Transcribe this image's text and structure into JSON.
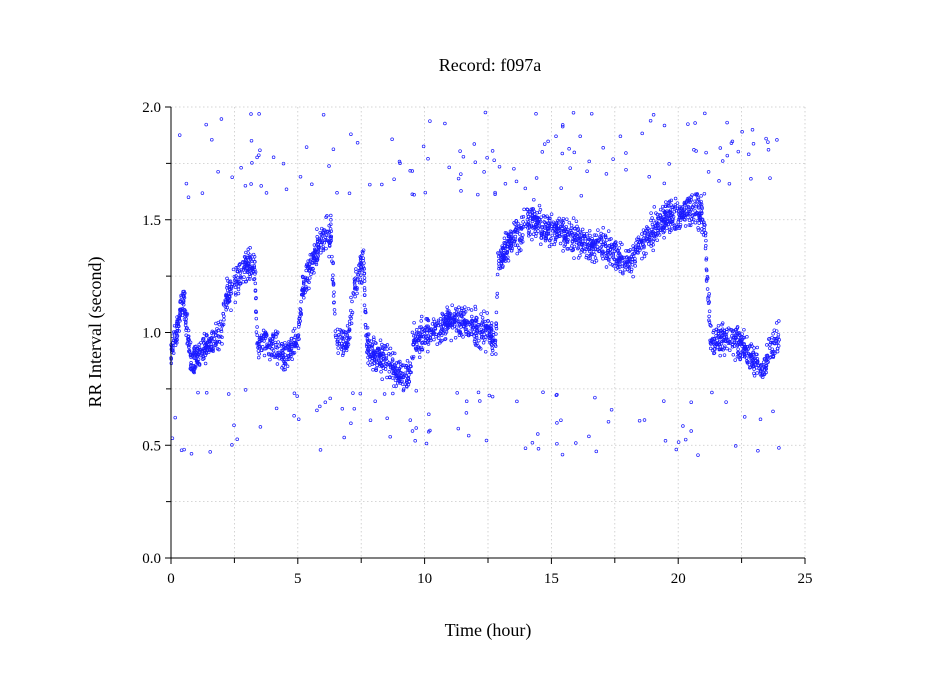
{
  "chart_data": {
    "type": "scatter",
    "title": "Record:  f097a",
    "xlabel": "Time (hour)",
    "ylabel": "RR Interval (second)",
    "xlim": [
      0,
      25
    ],
    "ylim": [
      0.0,
      2.0
    ],
    "x_ticks": [
      0,
      5,
      10,
      15,
      20,
      25
    ],
    "x_tick_labels": [
      "0",
      "5",
      "10",
      "15",
      "20",
      "25"
    ],
    "x_minor_ticks": [
      2.5,
      7.5,
      12.5,
      17.5,
      22.5
    ],
    "y_ticks": [
      0.0,
      0.5,
      1.0,
      1.5,
      2.0
    ],
    "y_tick_labels": [
      "0.0",
      "0.5",
      "1.0",
      "1.5",
      "2.0"
    ],
    "y_minor_ticks": [
      0.25,
      0.75,
      1.25,
      1.75
    ],
    "grid": true,
    "marker": "open-circle",
    "color": "#1a1aff",
    "trend": {
      "x": [
        0.0,
        0.3,
        0.5,
        0.8,
        1.0,
        1.5,
        2.0,
        2.2,
        2.5,
        3.0,
        3.3,
        3.4,
        3.6,
        4.0,
        4.5,
        5.0,
        5.2,
        5.5,
        6.0,
        6.3,
        6.5,
        7.0,
        7.2,
        7.5,
        7.6,
        7.7,
        8.0,
        8.5,
        9.0,
        9.3,
        9.6,
        10.0,
        10.5,
        11.0,
        11.5,
        12.0,
        12.5,
        12.8,
        12.9,
        13.5,
        14.0,
        14.5,
        14.6,
        15.0,
        15.5,
        16.0,
        16.5,
        17.0,
        17.5,
        18.0,
        18.5,
        19.0,
        19.5,
        20.0,
        20.5,
        21.0,
        21.3,
        21.5,
        22.0,
        22.5,
        23.0,
        23.3,
        23.6,
        24.0
      ],
      "y": [
        0.9,
        1.05,
        1.15,
        0.85,
        0.9,
        0.95,
        1.0,
        1.15,
        1.22,
        1.3,
        1.3,
        0.95,
        0.98,
        0.95,
        0.9,
        0.97,
        1.2,
        1.3,
        1.42,
        1.45,
        0.98,
        0.95,
        1.2,
        1.3,
        1.32,
        0.95,
        0.9,
        0.88,
        0.82,
        0.78,
        0.95,
        0.98,
        1.03,
        1.05,
        1.05,
        1.02,
        1.0,
        0.95,
        1.32,
        1.42,
        1.48,
        1.5,
        1.45,
        1.47,
        1.45,
        1.42,
        1.38,
        1.38,
        1.35,
        1.3,
        1.38,
        1.45,
        1.5,
        1.52,
        1.55,
        1.52,
        0.95,
        0.98,
        0.97,
        0.95,
        0.88,
        0.82,
        0.92,
        0.98
      ]
    }
  }
}
